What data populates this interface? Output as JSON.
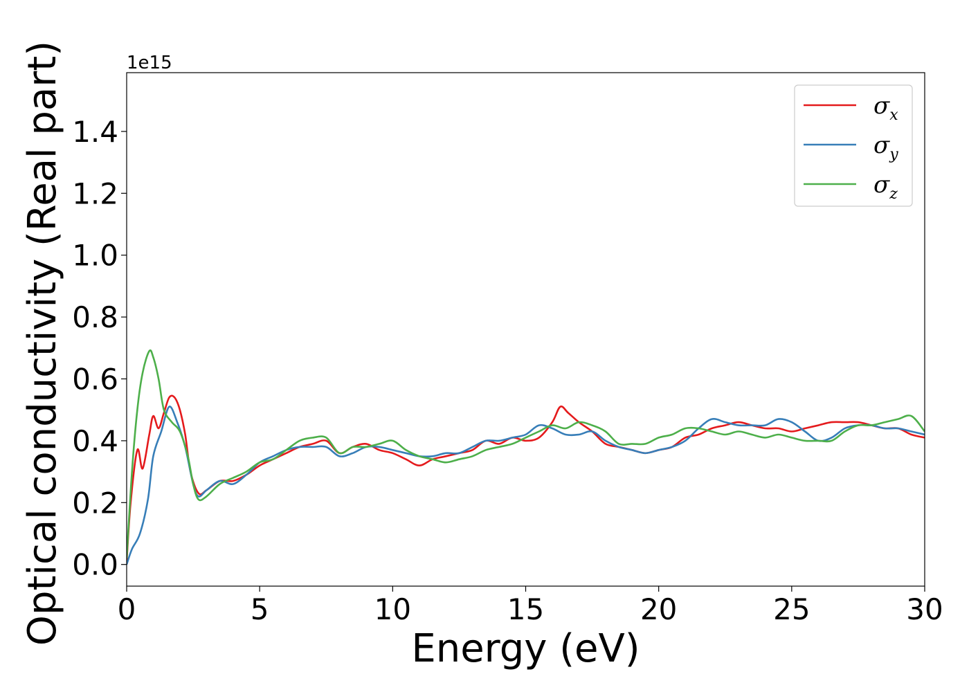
{
  "chart_data": {
    "type": "line",
    "xlabel": "Energy (eV)",
    "ylabel": "Optical conductivity (Real part)",
    "offset_text": "1e15",
    "xlim": [
      0,
      30
    ],
    "ylim": [
      -0.07,
      1.59
    ],
    "xticks": [
      0,
      5,
      10,
      15,
      20,
      25,
      30
    ],
    "xtick_labels": [
      "0",
      "5",
      "10",
      "15",
      "20",
      "25",
      "30"
    ],
    "yticks": [
      0.0,
      0.2,
      0.4,
      0.6,
      0.8,
      1.0,
      1.2,
      1.4
    ],
    "ytick_labels": [
      "0.0",
      "0.2",
      "0.4",
      "0.6",
      "0.8",
      "1.0",
      "1.2",
      "1.4"
    ],
    "grid": false,
    "legend_position": "top-right",
    "series": [
      {
        "name": "σx",
        "symbol": "σ",
        "subscript": "x",
        "color": "#e41a1c",
        "x": [
          0,
          0.15,
          0.4,
          0.6,
          0.85,
          1.0,
          1.2,
          1.4,
          1.6,
          1.8,
          2.0,
          2.2,
          2.4,
          2.7,
          3.0,
          3.5,
          4.0,
          4.5,
          5.0,
          5.5,
          6.0,
          6.5,
          7.0,
          7.5,
          8.0,
          8.5,
          9.0,
          9.5,
          10.0,
          10.5,
          11.0,
          11.5,
          12.0,
          12.5,
          13.0,
          13.5,
          14.0,
          14.5,
          15.0,
          15.5,
          16.0,
          16.3,
          16.6,
          17.0,
          17.5,
          18.0,
          18.5,
          19.0,
          19.5,
          20.0,
          20.5,
          21.0,
          21.5,
          22.0,
          22.5,
          23.0,
          23.5,
          24.0,
          24.5,
          25.0,
          25.5,
          26.0,
          26.5,
          27.0,
          27.5,
          28.0,
          28.5,
          29.0,
          29.5,
          30.0
        ],
        "y": [
          0.01,
          0.2,
          0.37,
          0.31,
          0.42,
          0.48,
          0.44,
          0.49,
          0.54,
          0.54,
          0.5,
          0.42,
          0.3,
          0.23,
          0.24,
          0.27,
          0.27,
          0.29,
          0.32,
          0.34,
          0.36,
          0.38,
          0.39,
          0.4,
          0.36,
          0.38,
          0.39,
          0.37,
          0.36,
          0.34,
          0.32,
          0.34,
          0.35,
          0.36,
          0.37,
          0.4,
          0.39,
          0.41,
          0.4,
          0.41,
          0.46,
          0.51,
          0.49,
          0.46,
          0.43,
          0.39,
          0.38,
          0.37,
          0.36,
          0.37,
          0.38,
          0.41,
          0.42,
          0.44,
          0.45,
          0.46,
          0.45,
          0.44,
          0.44,
          0.43,
          0.44,
          0.45,
          0.46,
          0.46,
          0.46,
          0.45,
          0.44,
          0.44,
          0.42,
          0.41
        ]
      },
      {
        "name": "σy",
        "symbol": "σ",
        "subscript": "y",
        "color": "#377eb8",
        "x": [
          0,
          0.2,
          0.5,
          0.8,
          1.0,
          1.3,
          1.6,
          1.9,
          2.2,
          2.5,
          2.7,
          3.0,
          3.5,
          4.0,
          4.5,
          5.0,
          5.5,
          6.0,
          6.5,
          7.0,
          7.5,
          8.0,
          8.5,
          9.0,
          9.5,
          10.0,
          10.5,
          11.0,
          11.5,
          12.0,
          12.5,
          13.0,
          13.5,
          14.0,
          14.5,
          15.0,
          15.5,
          16.0,
          16.5,
          17.0,
          17.5,
          18.0,
          18.5,
          19.0,
          19.5,
          20.0,
          20.5,
          21.0,
          21.5,
          22.0,
          22.5,
          23.0,
          23.5,
          24.0,
          24.5,
          25.0,
          25.5,
          26.0,
          26.5,
          27.0,
          27.5,
          28.0,
          28.5,
          29.0,
          29.5,
          30.0
        ],
        "y": [
          0.0,
          0.05,
          0.1,
          0.21,
          0.35,
          0.43,
          0.51,
          0.46,
          0.38,
          0.26,
          0.22,
          0.24,
          0.27,
          0.26,
          0.29,
          0.33,
          0.35,
          0.37,
          0.38,
          0.38,
          0.38,
          0.35,
          0.36,
          0.38,
          0.38,
          0.37,
          0.36,
          0.35,
          0.35,
          0.36,
          0.36,
          0.38,
          0.4,
          0.4,
          0.41,
          0.42,
          0.45,
          0.44,
          0.42,
          0.42,
          0.43,
          0.4,
          0.38,
          0.37,
          0.36,
          0.37,
          0.38,
          0.4,
          0.44,
          0.47,
          0.46,
          0.45,
          0.45,
          0.45,
          0.47,
          0.46,
          0.43,
          0.4,
          0.41,
          0.44,
          0.45,
          0.45,
          0.44,
          0.44,
          0.43,
          0.42
        ]
      },
      {
        "name": "σz",
        "symbol": "σ",
        "subscript": "z",
        "color": "#4daf4a",
        "x": [
          0,
          0.2,
          0.4,
          0.6,
          0.85,
          1.0,
          1.2,
          1.4,
          1.7,
          2.0,
          2.3,
          2.5,
          2.7,
          3.0,
          3.5,
          4.0,
          4.5,
          5.0,
          5.5,
          6.0,
          6.5,
          7.0,
          7.5,
          8.0,
          8.5,
          9.0,
          9.5,
          10.0,
          10.5,
          11.0,
          11.5,
          12.0,
          12.5,
          13.0,
          13.5,
          14.0,
          14.5,
          15.0,
          15.5,
          16.0,
          16.5,
          17.0,
          17.5,
          18.0,
          18.5,
          19.0,
          19.5,
          20.0,
          20.5,
          21.0,
          21.5,
          22.0,
          22.5,
          23.0,
          23.5,
          24.0,
          24.5,
          25.0,
          25.5,
          26.0,
          26.5,
          27.0,
          27.5,
          28.0,
          28.5,
          29.0,
          29.5,
          30.0
        ],
        "y": [
          0.02,
          0.3,
          0.5,
          0.62,
          0.69,
          0.67,
          0.6,
          0.5,
          0.46,
          0.43,
          0.35,
          0.26,
          0.21,
          0.22,
          0.26,
          0.28,
          0.3,
          0.33,
          0.34,
          0.37,
          0.4,
          0.41,
          0.41,
          0.36,
          0.38,
          0.38,
          0.39,
          0.4,
          0.37,
          0.35,
          0.34,
          0.33,
          0.34,
          0.35,
          0.37,
          0.38,
          0.39,
          0.41,
          0.43,
          0.45,
          0.44,
          0.46,
          0.45,
          0.43,
          0.39,
          0.39,
          0.39,
          0.41,
          0.42,
          0.44,
          0.44,
          0.43,
          0.42,
          0.43,
          0.42,
          0.41,
          0.42,
          0.41,
          0.4,
          0.4,
          0.4,
          0.43,
          0.45,
          0.45,
          0.46,
          0.47,
          0.48,
          0.43
        ]
      }
    ]
  }
}
